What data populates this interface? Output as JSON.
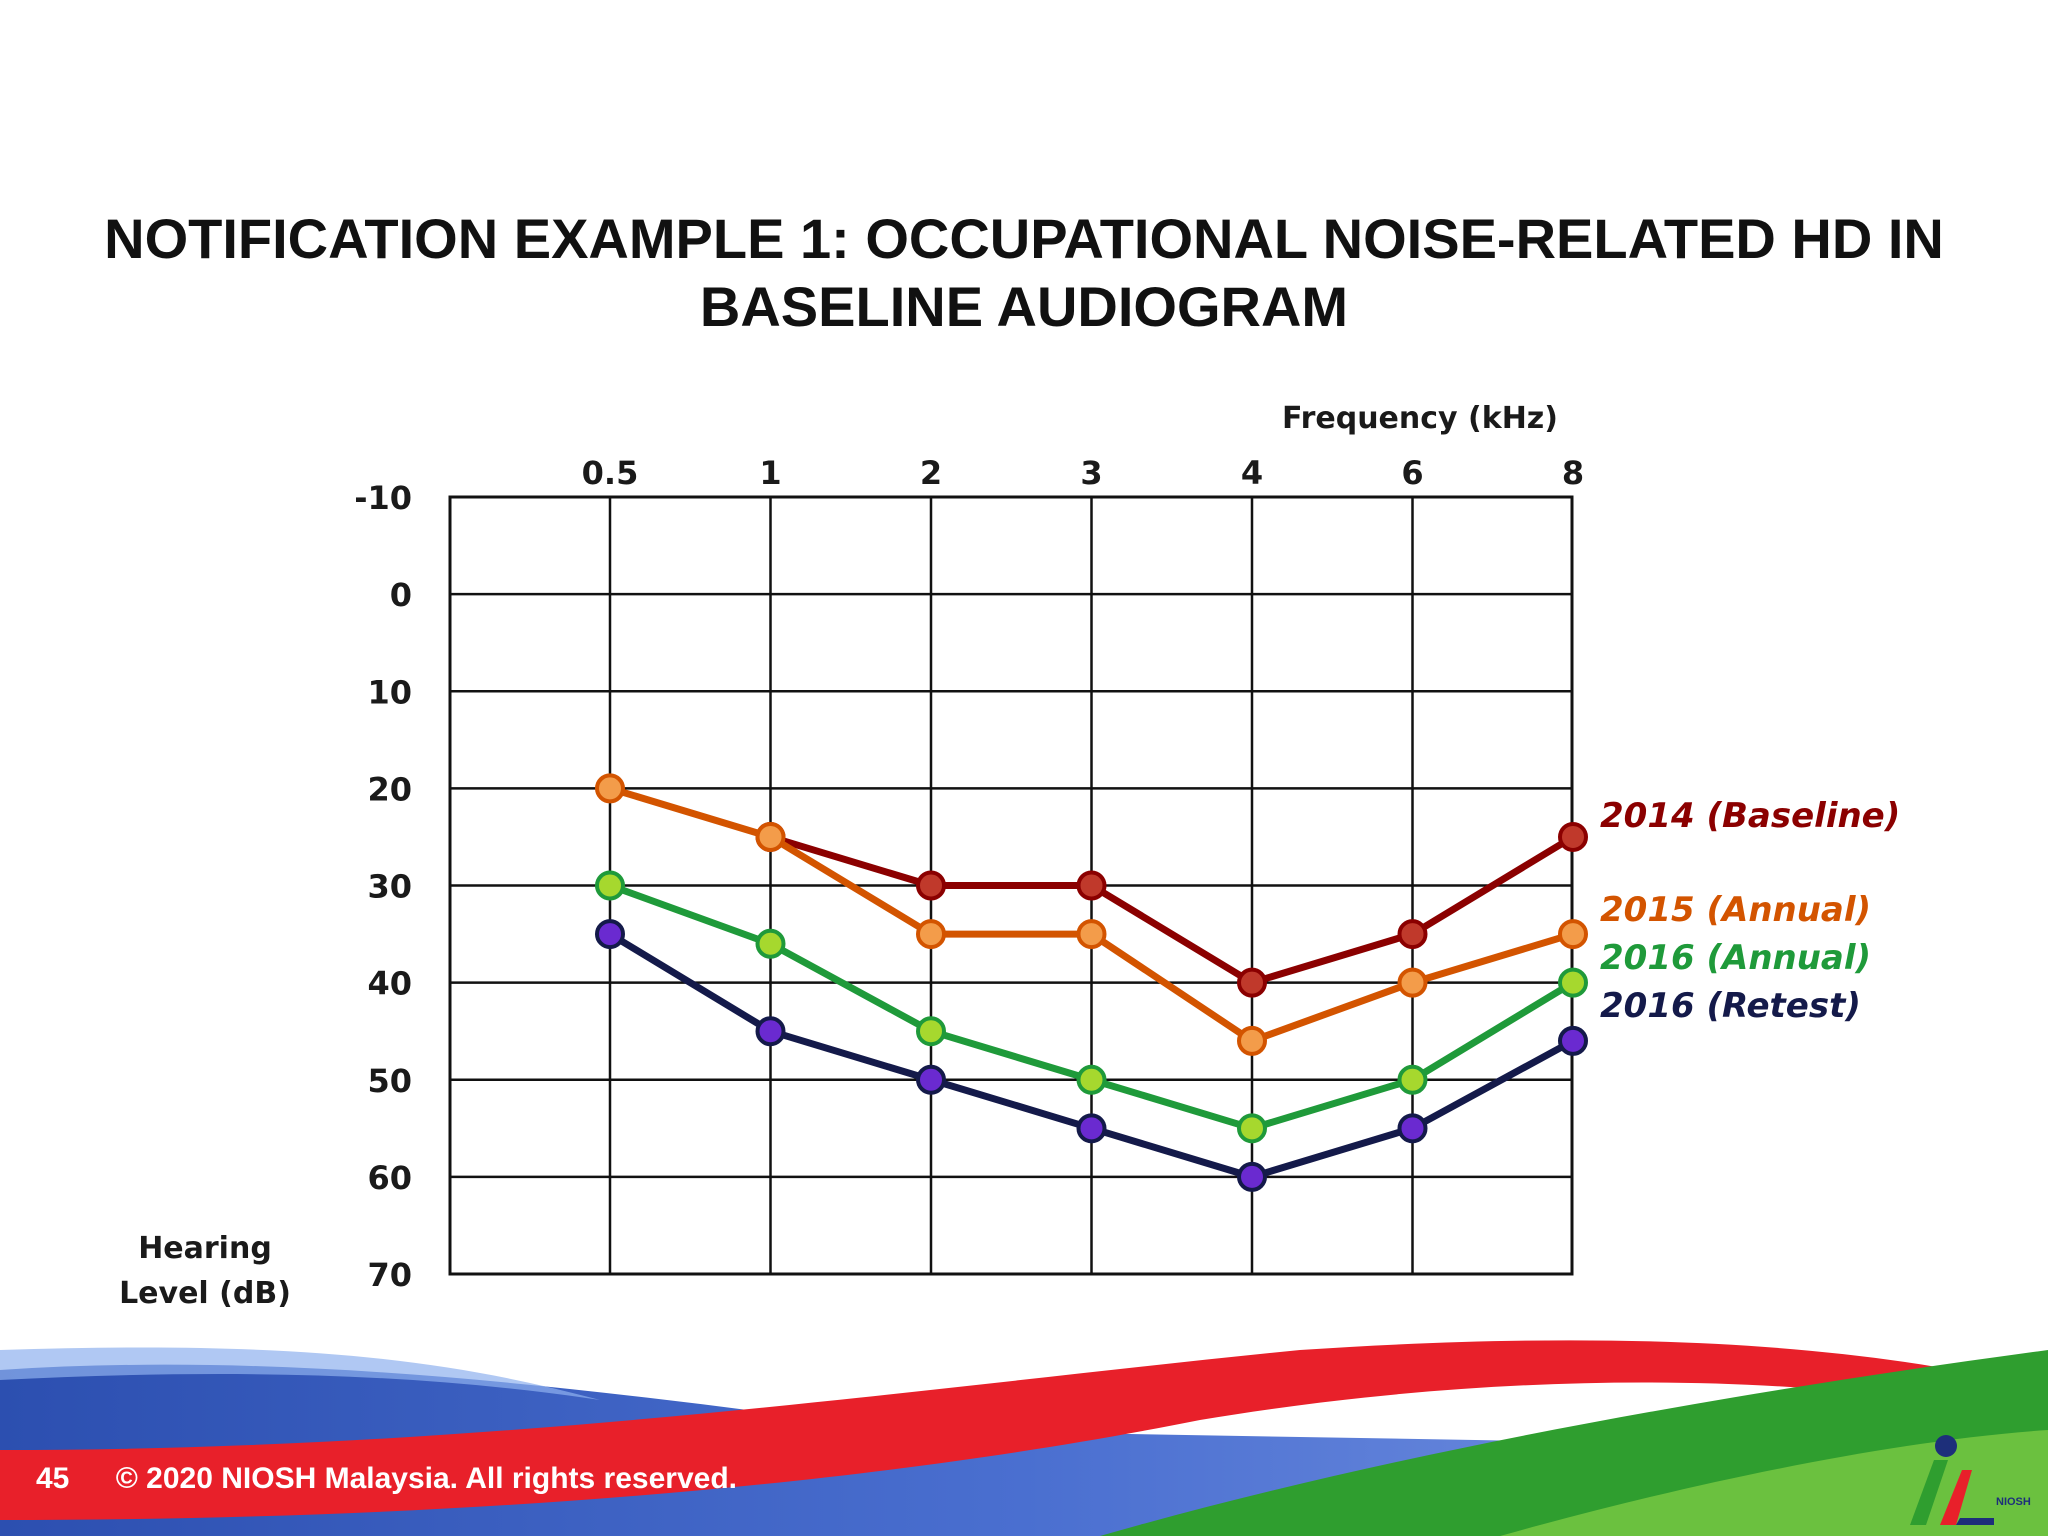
{
  "slide": {
    "title_line1": "NOTIFICATION EXAMPLE 1: OCCUPATIONAL NOISE-RELATED HD IN",
    "title_line2": "BASELINE AUDIOGRAM",
    "page_number": "45",
    "copyright": "© 2020 NIOSH Malaysia. All rights reserved.",
    "logo_text": "NIOSH"
  },
  "chart_data": {
    "type": "line",
    "xlabel": "Frequency (kHz)",
    "ylabel_line1": "Hearing",
    "ylabel_line2": "Level (dB)",
    "categories": [
      "0.5",
      "1",
      "2",
      "3",
      "4",
      "6",
      "8"
    ],
    "yticks": [
      "-10",
      "0",
      "10",
      "20",
      "30",
      "40",
      "50",
      "60",
      "70"
    ],
    "ylim": [
      -10,
      70
    ],
    "y_inverted": true,
    "grid": true,
    "legend_position": "right",
    "series": [
      {
        "name": "2014 (Baseline)",
        "color": "#8b0000",
        "marker": "#c0392b",
        "values": [
          null,
          25,
          30,
          30,
          40,
          35,
          25
        ]
      },
      {
        "name": "2015 (Annual)",
        "color": "#d35400",
        "marker": "#f39c4a",
        "values": [
          20,
          25,
          35,
          35,
          46,
          40,
          35
        ]
      },
      {
        "name": "2016 (Annual)",
        "color": "#1f9a3a",
        "marker": "#a6d82e",
        "values": [
          30,
          36,
          45,
          50,
          55,
          50,
          40
        ]
      },
      {
        "name": "2016 (Retest)",
        "color": "#141a4a",
        "marker": "#6a2ad0",
        "values": [
          35,
          45,
          50,
          55,
          60,
          55,
          46
        ]
      }
    ]
  }
}
